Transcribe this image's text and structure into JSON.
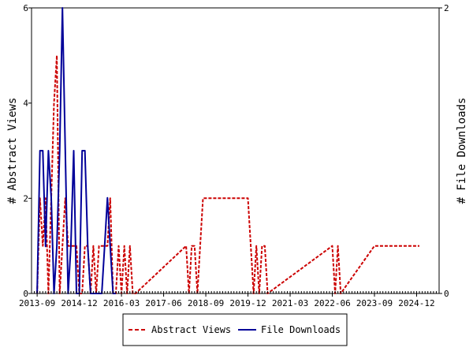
{
  "chart_data": {
    "type": "line",
    "title": "",
    "x_tick_labels": [
      "2013-09",
      "2014-12",
      "2016-03",
      "2017-06",
      "2018-09",
      "2019-12",
      "2021-03",
      "2022-06",
      "2023-09",
      "2024-12"
    ],
    "y_left": {
      "label": "# Abstract Views",
      "ticks": [
        "0",
        "2",
        "4",
        "6"
      ],
      "range": [
        0,
        6
      ]
    },
    "y_right": {
      "label": "# File Downloads",
      "ticks": [
        "0",
        "2"
      ],
      "range": [
        0,
        2
      ]
    },
    "grid": false,
    "legend_placement": "bottom",
    "series": [
      {
        "name": "Abstract Views",
        "axis": "left",
        "color": "#cc0000",
        "style": "dashed",
        "x": [
          "2013-09",
          "2013-10",
          "2013-11",
          "2013-12",
          "2014-01",
          "2014-02",
          "2014-03",
          "2014-04",
          "2014-05",
          "2014-06",
          "2014-07",
          "2014-08",
          "2014-09",
          "2014-10",
          "2014-11",
          "2014-12",
          "2015-01",
          "2015-02",
          "2015-03",
          "2015-04",
          "2015-05",
          "2015-06",
          "2015-07",
          "2015-08",
          "2015-09",
          "2015-10",
          "2015-11",
          "2015-12",
          "2016-01",
          "2016-02",
          "2016-03",
          "2016-04",
          "2016-05",
          "2016-06",
          "2016-07",
          "2016-08",
          "2018-02",
          "2018-03",
          "2018-04",
          "2018-05",
          "2018-06",
          "2018-07",
          "2018-08",
          "2019-12",
          "2020-01",
          "2020-02",
          "2020-03",
          "2020-04",
          "2020-05",
          "2020-06",
          "2020-07",
          "2022-06",
          "2022-07",
          "2022-08",
          "2022-09",
          "2023-09",
          "2025-01"
        ],
        "y": [
          0,
          2,
          1,
          2,
          0,
          2,
          4,
          5,
          0,
          1,
          2,
          1,
          1,
          1,
          1,
          0,
          0,
          1,
          1,
          0,
          1,
          0,
          1,
          1,
          1,
          1,
          2,
          0,
          0,
          1,
          0,
          1,
          0,
          1,
          0,
          0,
          1,
          0,
          1,
          1,
          0,
          1,
          2,
          2,
          1,
          0,
          1,
          0,
          1,
          1,
          0,
          1,
          0,
          1,
          0,
          1,
          1
        ]
      },
      {
        "name": "File Downloads",
        "axis": "right",
        "color": "#000099",
        "style": "solid",
        "x": [
          "2013-09",
          "2013-10",
          "2013-11",
          "2013-12",
          "2014-01",
          "2014-02",
          "2014-03",
          "2014-04",
          "2014-05",
          "2014-06",
          "2014-07",
          "2014-08",
          "2014-09",
          "2014-10",
          "2014-11",
          "2014-12",
          "2015-01",
          "2015-02",
          "2015-03",
          "2015-04",
          "2015-05",
          "2015-06",
          "2015-07",
          "2015-08",
          "2015-09",
          "2015-10",
          "2015-11",
          "2015-12",
          "2016-01"
        ],
        "y": [
          0,
          1,
          1,
          0.33,
          1,
          0.67,
          0,
          0.33,
          1,
          2,
          1,
          0,
          0.33,
          1,
          0,
          0,
          1,
          1,
          0.33,
          0,
          0,
          0,
          0,
          0,
          0.33,
          0.67,
          0.33,
          0,
          0
        ]
      }
    ]
  }
}
